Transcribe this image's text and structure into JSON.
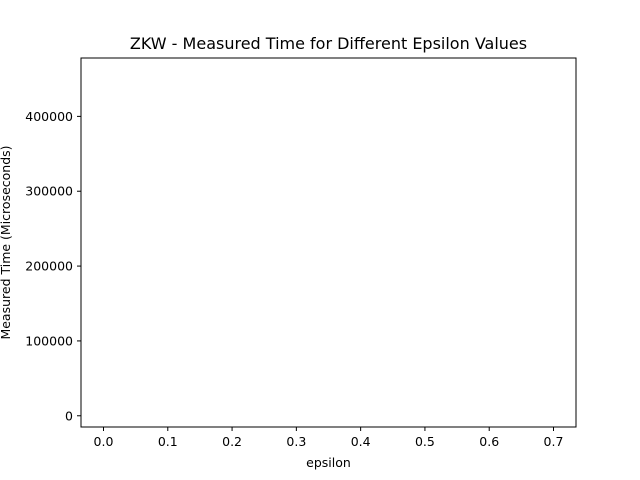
{
  "chart_data": {
    "type": "scatter",
    "title": "ZKW - Measured Time for Different Epsilon Values",
    "xlabel": "epsilon",
    "ylabel": "Measured Time (Microseconds)",
    "xlim": [
      -0.035,
      0.735
    ],
    "ylim": [
      -15000,
      478000
    ],
    "x_ticks": [
      0.0,
      0.1,
      0.2,
      0.3,
      0.4,
      0.5,
      0.6,
      0.7
    ],
    "x_tick_labels": [
      "0.0",
      "0.1",
      "0.2",
      "0.3",
      "0.4",
      "0.5",
      "0.6",
      "0.7"
    ],
    "y_ticks": [
      0,
      100000,
      200000,
      300000,
      400000
    ],
    "y_tick_labels": [
      "0",
      "100000",
      "200000",
      "300000",
      "400000"
    ],
    "series": [],
    "grid": false,
    "legend": "none"
  }
}
